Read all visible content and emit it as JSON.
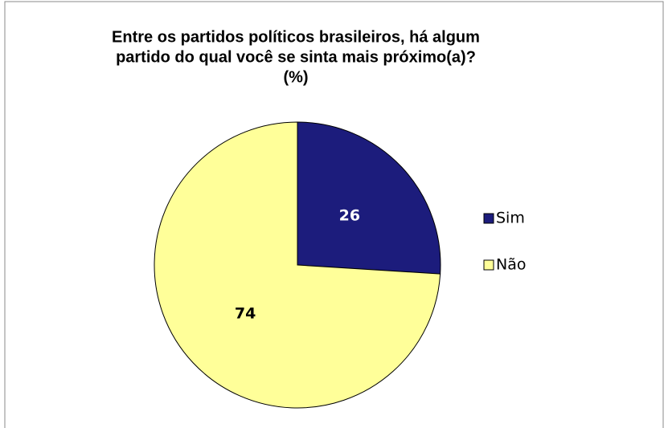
{
  "chart_data": {
    "type": "pie",
    "title": [
      "Entre os partidos políticos brasileiros, há algum",
      "partido do qual você se sinta mais próximo(a)?",
      "(%)"
    ],
    "categories": [
      "Sim",
      "Não"
    ],
    "values": [
      26,
      74
    ],
    "colors": [
      "#1c1c7c",
      "#ffff99"
    ],
    "label_colors": [
      "#ffffff",
      "#000000"
    ],
    "legend": "right"
  }
}
